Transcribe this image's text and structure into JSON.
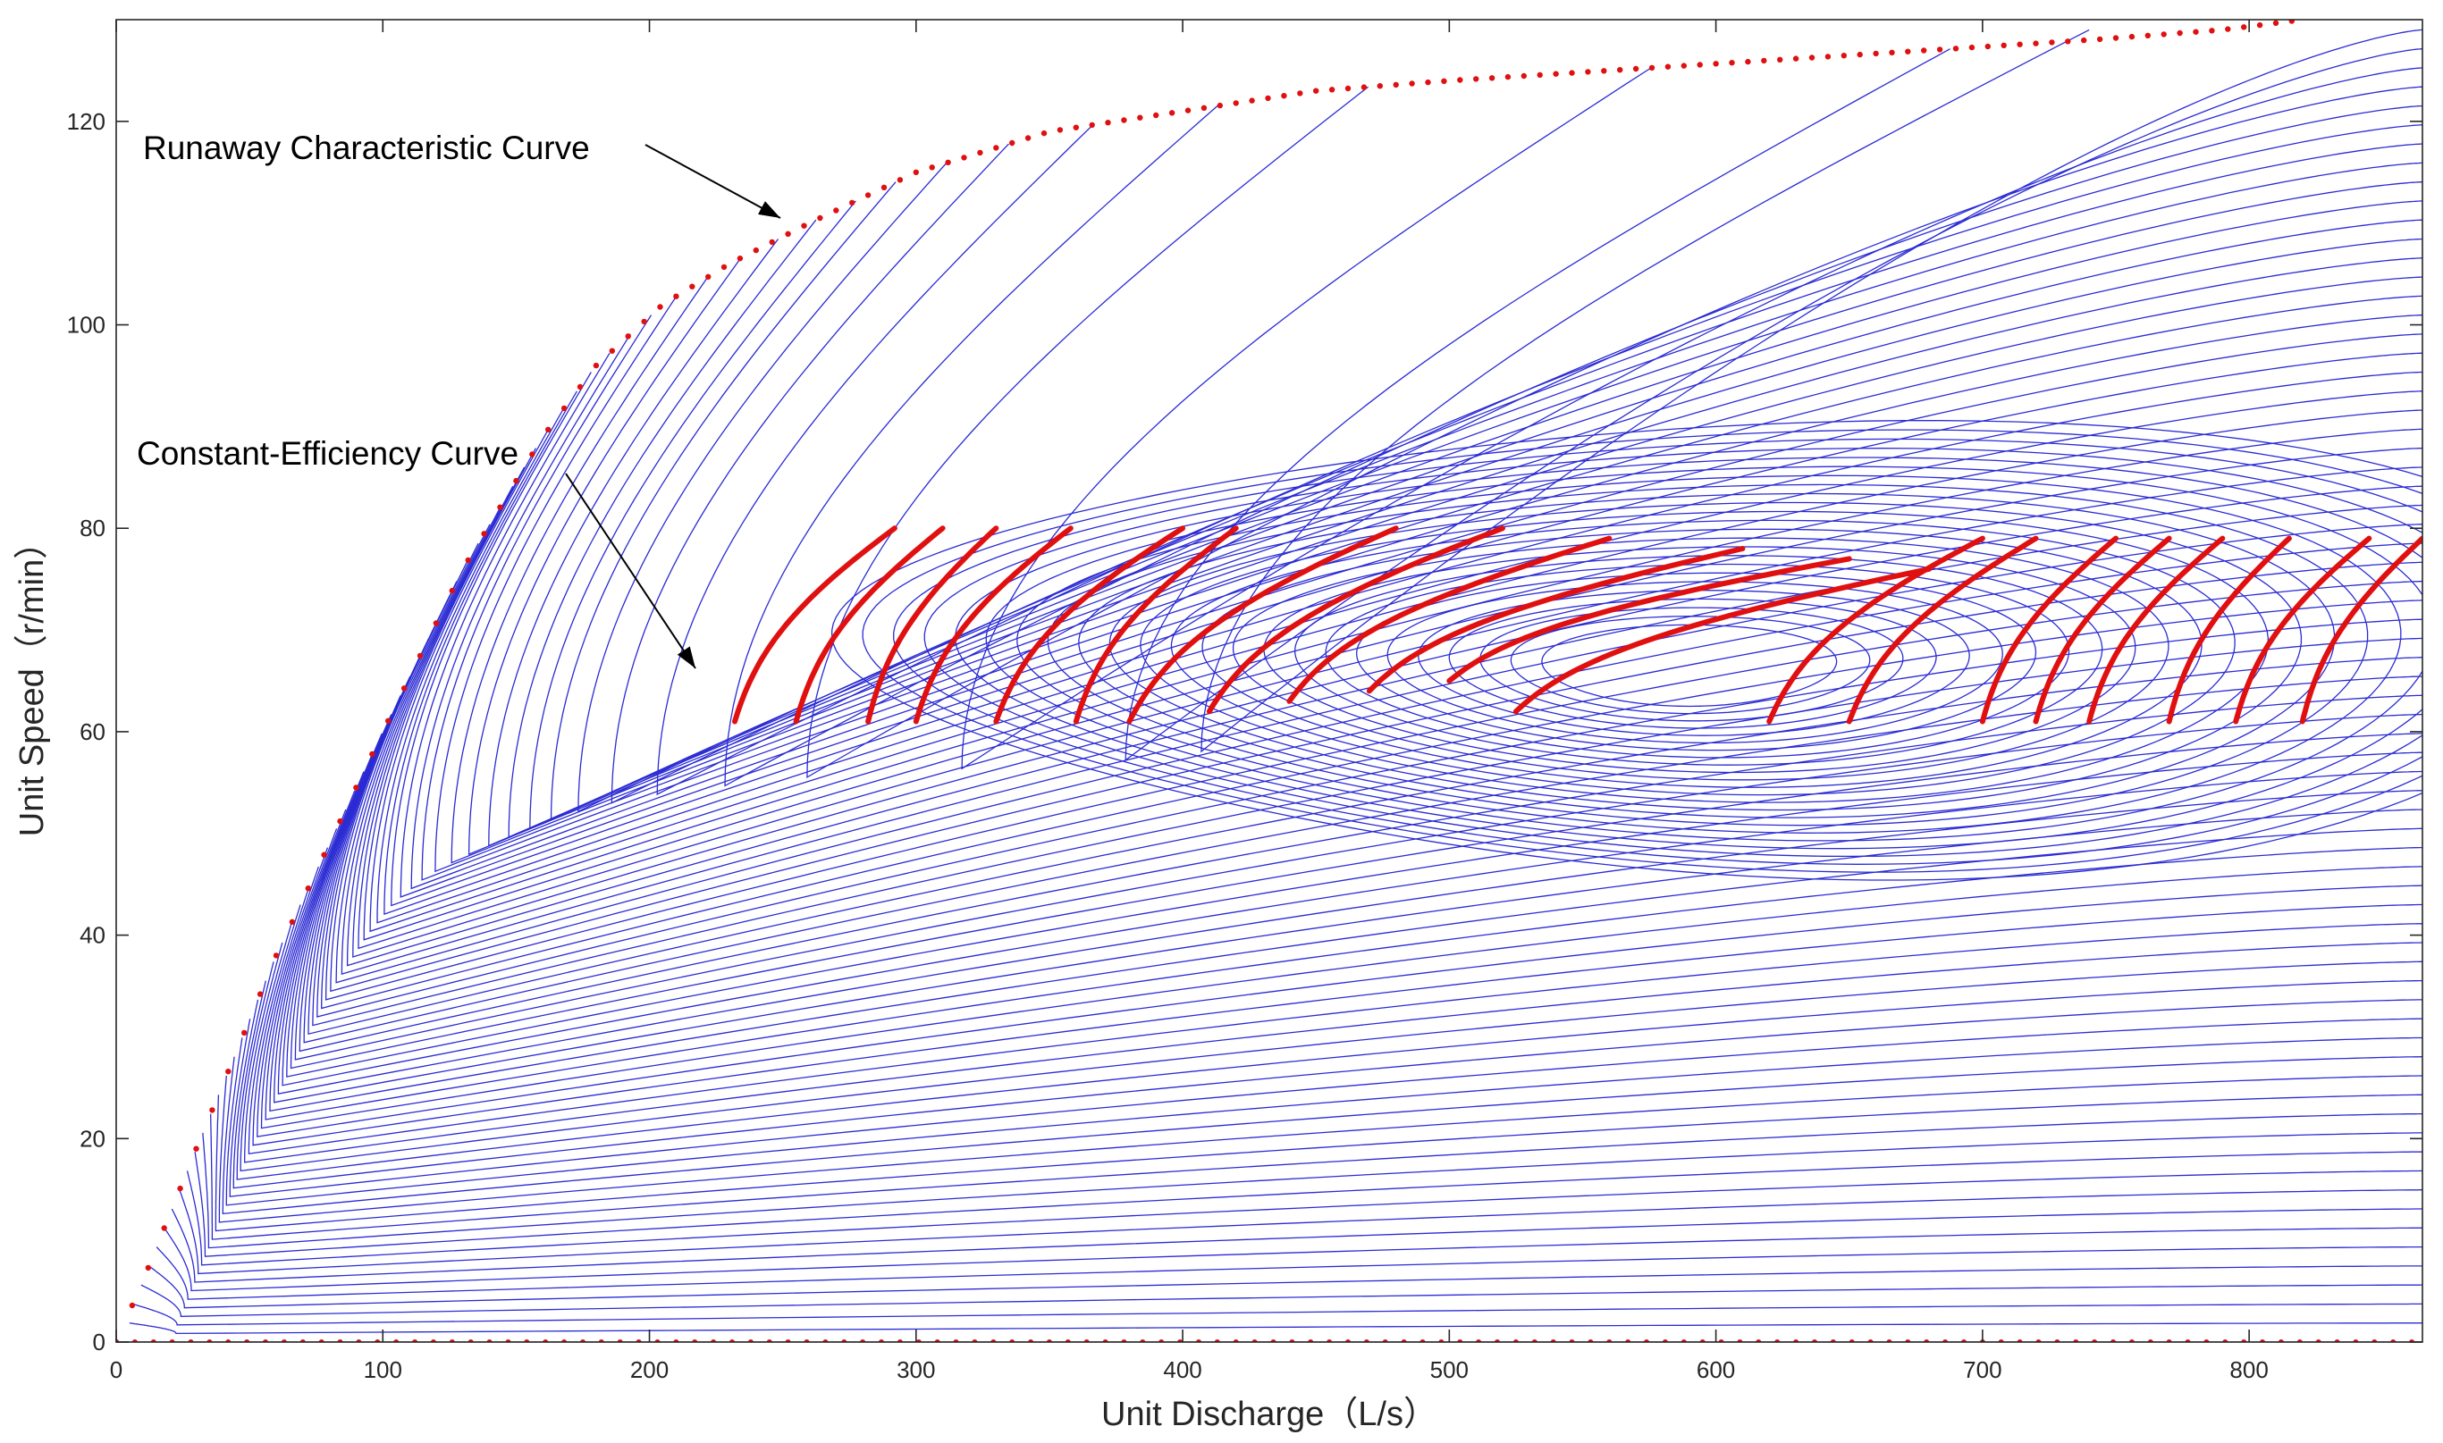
{
  "chart_data": {
    "type": "line",
    "title": "",
    "xlabel": "Unit Discharge（L/s）",
    "ylabel": "Unit Speed（r/min）",
    "xlim": [
      0,
      865
    ],
    "ylim": [
      0,
      130
    ],
    "xticks": [
      0,
      100,
      200,
      300,
      400,
      500,
      600,
      700,
      800
    ],
    "yticks": [
      0,
      20,
      40,
      60,
      80,
      100,
      120
    ],
    "grid": false,
    "legend": "none",
    "colors": {
      "lines": "#2b2bd4",
      "markers": "#e01010",
      "axes": "#262626"
    },
    "annotations": [
      {
        "text": "Runaway Characteristic Curve",
        "points_to": [
          250,
          110
        ]
      },
      {
        "text": "Constant-Efficiency Curve",
        "points_to": [
          216,
          66
        ]
      }
    ],
    "series": [
      {
        "role": "runaway-characteristic",
        "style": "red-dotted",
        "points": [
          [
            0,
            0
          ],
          [
            10,
            6
          ],
          [
            30,
            19
          ],
          [
            60,
            38
          ],
          [
            100,
            60
          ],
          [
            130,
            76
          ],
          [
            160,
            89
          ],
          [
            180,
            96
          ],
          [
            205,
            102
          ],
          [
            230,
            106
          ],
          [
            260,
            110
          ],
          [
            300,
            115
          ],
          [
            350,
            119
          ],
          [
            400,
            121
          ],
          [
            450,
            123
          ],
          [
            500,
            124
          ],
          [
            560,
            125
          ],
          [
            620,
            126
          ],
          [
            680,
            127
          ],
          [
            740,
            128
          ],
          [
            790,
            129
          ],
          [
            820,
            130
          ]
        ]
      },
      {
        "role": "zero-speed-line",
        "style": "red-dotted",
        "points": [
          [
            0,
            0
          ],
          [
            865,
            0
          ]
        ]
      },
      {
        "role": "flow-characteristic-family",
        "style": "blue-lines",
        "count": 70,
        "x_range": [
          0,
          865
        ],
        "speed_range": [
          0,
          129
        ]
      },
      {
        "role": "constant-efficiency-contours",
        "style": "blue-closed-contours",
        "count": 24,
        "center": [
          590,
          66.5
        ],
        "outer_semi_axes": [
          330,
          22
        ],
        "inner_semi_axes": [
          55,
          4
        ]
      },
      {
        "role": "constant-efficiency-points",
        "style": "red-markers",
        "bands": [
          {
            "y_range": [
              61,
              80
            ],
            "x_range": [
              232,
              292
            ]
          },
          {
            "y_range": [
              61,
              80
            ],
            "x_range": [
              255,
              310
            ]
          },
          {
            "y_range": [
              61,
              80
            ],
            "x_range": [
              282,
              330
            ]
          },
          {
            "y_range": [
              61,
              80
            ],
            "x_range": [
              300,
              358
            ]
          },
          {
            "y_range": [
              61,
              80
            ],
            "x_range": [
              330,
              400
            ]
          },
          {
            "y_range": [
              61,
              80
            ],
            "x_range": [
              360,
              420
            ]
          },
          {
            "y_range": [
              61,
              80
            ],
            "x_range": [
              380,
              480
            ]
          },
          {
            "y_range": [
              62,
              80
            ],
            "x_range": [
              410,
              520
            ]
          },
          {
            "y_range": [
              63,
              79
            ],
            "x_range": [
              440,
              560
            ]
          },
          {
            "y_range": [
              64,
              78
            ],
            "x_range": [
              470,
              610
            ]
          },
          {
            "y_range": [
              65,
              77
            ],
            "x_range": [
              500,
              650
            ]
          },
          {
            "y_range": [
              62,
              76
            ],
            "x_range": [
              525,
              680
            ]
          },
          {
            "y_range": [
              61,
              79
            ],
            "x_range": [
              620,
              700
            ]
          },
          {
            "y_range": [
              61,
              79
            ],
            "x_range": [
              650,
              720
            ]
          },
          {
            "y_range": [
              61,
              79
            ],
            "x_range": [
              700,
              750
            ]
          },
          {
            "y_range": [
              61,
              79
            ],
            "x_range": [
              720,
              770
            ]
          },
          {
            "y_range": [
              61,
              79
            ],
            "x_range": [
              740,
              790
            ]
          },
          {
            "y_range": [
              61,
              79
            ],
            "x_range": [
              770,
              815
            ]
          },
          {
            "y_range": [
              61,
              79
            ],
            "x_range": [
              795,
              845
            ]
          },
          {
            "y_range": [
              61,
              79
            ],
            "x_range": [
              820,
              865
            ]
          }
        ]
      }
    ]
  }
}
